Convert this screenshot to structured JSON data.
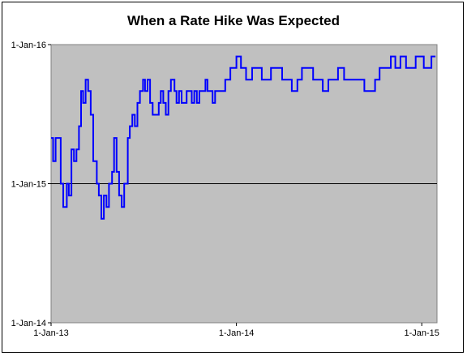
{
  "chart_data": {
    "type": "line",
    "title": "When a Rate Hike Was Expected",
    "xlabel": "",
    "ylabel": "",
    "x_ticks": [
      "1-Jan-13",
      "1-Jan-14",
      "1-Jan-15"
    ],
    "y_ticks": [
      "1-Jan-14",
      "1-Jan-15",
      "1-Jan-16"
    ],
    "xlim": [
      "2013-01-01",
      "2015-01-31"
    ],
    "ylim": [
      "2014-01-01",
      "2016-01-01"
    ],
    "plot_background": "#c0c0c0",
    "line_color": "#0000ff",
    "reference_line": "2015-01-01",
    "grid": false,
    "legend": "none",
    "series": [
      {
        "x": [
          "2013-01-01",
          "2013-01-05",
          "2013-01-10",
          "2013-01-15",
          "2013-01-20",
          "2013-01-25",
          "2013-02-01",
          "2013-02-05",
          "2013-02-10",
          "2013-02-15",
          "2013-02-20",
          "2013-02-25",
          "2013-03-01",
          "2013-03-05",
          "2013-03-10",
          "2013-03-15",
          "2013-03-20",
          "2013-03-25",
          "2013-04-01",
          "2013-04-05",
          "2013-04-10",
          "2013-04-15",
          "2013-04-20",
          "2013-04-25",
          "2013-05-01",
          "2013-05-05",
          "2013-05-10",
          "2013-05-15",
          "2013-05-20",
          "2013-05-25",
          "2013-06-01",
          "2013-06-05",
          "2013-06-10",
          "2013-06-15",
          "2013-06-20",
          "2013-06-25",
          "2013-07-01",
          "2013-07-05",
          "2013-07-10",
          "2013-07-15",
          "2013-07-20",
          "2013-07-25",
          "2013-08-01",
          "2013-08-05",
          "2013-08-10",
          "2013-08-15",
          "2013-08-20",
          "2013-08-25",
          "2013-09-01",
          "2013-09-05",
          "2013-09-10",
          "2013-09-15",
          "2013-09-20",
          "2013-09-25",
          "2013-10-01",
          "2013-10-05",
          "2013-10-10",
          "2013-10-15",
          "2013-10-20",
          "2013-10-25",
          "2013-11-01",
          "2013-11-05",
          "2013-11-10",
          "2013-11-15",
          "2013-11-20",
          "2013-11-25",
          "2013-12-01",
          "2013-12-10",
          "2013-12-20",
          "2014-01-01",
          "2014-01-10",
          "2014-01-20",
          "2014-02-01",
          "2014-02-10",
          "2014-02-20",
          "2014-03-01",
          "2014-03-10",
          "2014-03-20",
          "2014-04-01",
          "2014-04-10",
          "2014-04-20",
          "2014-05-01",
          "2014-05-10",
          "2014-05-20",
          "2014-06-01",
          "2014-06-10",
          "2014-06-20",
          "2014-07-01",
          "2014-07-10",
          "2014-07-20",
          "2014-08-01",
          "2014-08-10",
          "2014-08-20",
          "2014-09-01",
          "2014-09-10",
          "2014-09-20",
          "2014-10-01",
          "2014-10-05",
          "2014-10-10",
          "2014-10-20",
          "2014-11-01",
          "2014-11-10",
          "2014-11-20",
          "2014-12-01",
          "2014-12-10",
          "2014-12-20",
          "2015-01-01",
          "2015-01-05",
          "2015-01-10",
          "2015-01-20",
          "2015-01-28"
        ],
        "y": [
          "2015-05-01",
          "2015-03-01",
          "2015-05-01",
          "2015-05-01",
          "2015-01-01",
          "2014-11-01",
          "2015-01-01",
          "2014-12-01",
          "2015-04-01",
          "2015-03-01",
          "2015-04-01",
          "2015-06-01",
          "2015-09-01",
          "2015-08-01",
          "2015-10-01",
          "2015-09-01",
          "2015-07-01",
          "2015-03-01",
          "2015-01-01",
          "2014-12-01",
          "2014-10-01",
          "2014-12-01",
          "2014-11-01",
          "2015-01-01",
          "2015-02-01",
          "2015-05-01",
          "2015-02-01",
          "2014-12-01",
          "2014-11-01",
          "2015-01-01",
          "2015-05-01",
          "2015-06-01",
          "2015-07-01",
          "2015-06-01",
          "2015-08-01",
          "2015-09-01",
          "2015-10-01",
          "2015-09-01",
          "2015-10-01",
          "2015-08-01",
          "2015-07-01",
          "2015-07-01",
          "2015-08-01",
          "2015-09-01",
          "2015-08-01",
          "2015-07-01",
          "2015-09-01",
          "2015-10-01",
          "2015-09-01",
          "2015-08-01",
          "2015-09-01",
          "2015-08-01",
          "2015-08-01",
          "2015-09-01",
          "2015-09-01",
          "2015-08-01",
          "2015-09-01",
          "2015-08-01",
          "2015-09-01",
          "2015-09-01",
          "2015-10-01",
          "2015-09-01",
          "2015-09-01",
          "2015-08-01",
          "2015-09-01",
          "2015-09-01",
          "2015-09-01",
          "2015-10-01",
          "2015-11-01",
          "2015-12-01",
          "2015-11-01",
          "2015-10-01",
          "2015-11-01",
          "2015-11-01",
          "2015-10-01",
          "2015-10-01",
          "2015-11-01",
          "2015-11-01",
          "2015-10-01",
          "2015-10-01",
          "2015-09-01",
          "2015-10-01",
          "2015-11-01",
          "2015-11-01",
          "2015-10-01",
          "2015-10-01",
          "2015-09-01",
          "2015-10-01",
          "2015-10-01",
          "2015-11-01",
          "2015-10-01",
          "2015-10-01",
          "2015-10-01",
          "2015-10-01",
          "2015-09-01",
          "2015-09-01",
          "2015-10-01",
          "2015-10-01",
          "2015-11-01",
          "2015-11-01",
          "2015-12-01",
          "2015-11-01",
          "2015-12-01",
          "2015-11-01",
          "2015-11-01",
          "2015-12-01",
          "2015-12-01",
          "2015-11-01",
          "2015-11-01",
          "2015-12-01",
          "2015-12-01"
        ]
      }
    ]
  }
}
